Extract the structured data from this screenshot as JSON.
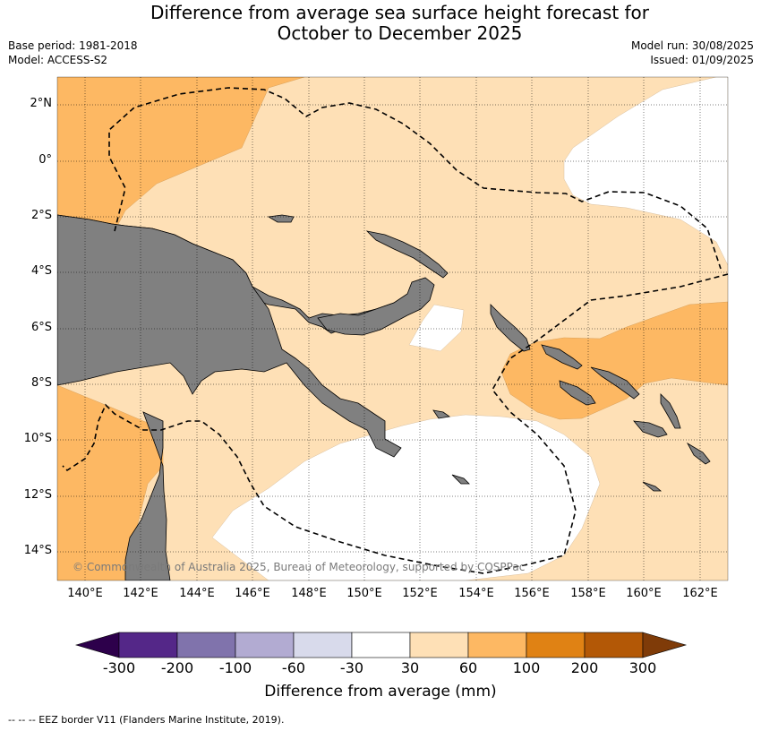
{
  "title_line1": "Difference from average sea surface height forecast for",
  "title_line2": "October to December 2025",
  "meta": {
    "base_period": "Base period: 1981-2018",
    "model": "Model: ACCESS-S2",
    "model_run": "Model run: 30/08/2025",
    "issued": "Issued: 01/09/2025"
  },
  "map": {
    "lon_ticks": [
      "140°E",
      "142°E",
      "144°E",
      "146°E",
      "148°E",
      "150°E",
      "152°E",
      "154°E",
      "156°E",
      "158°E",
      "160°E",
      "162°E"
    ],
    "lat_ticks": [
      "2°N",
      "0°",
      "2°S",
      "4°S",
      "6°S",
      "8°S",
      "10°S",
      "12°S",
      "14°S"
    ],
    "grid": true,
    "land_color": "#808080",
    "copyright": "© Commonwealth of Australia 2025, Bureau of Meteorology, supported by COSPPac"
  },
  "colorbar": {
    "ticks": [
      "-300",
      "-200",
      "-100",
      "-60",
      "-30",
      "30",
      "60",
      "100",
      "200",
      "300"
    ],
    "colors": [
      "#2d004b",
      "#542788",
      "#8073ac",
      "#b2abd2",
      "#d8daeb",
      "#ffffff",
      "#fee0b6",
      "#fdb863",
      "#e08214",
      "#b35806",
      "#7f3b08"
    ],
    "label": "Difference from average (mm)"
  },
  "footer": "--  --  -- EEZ border V11 (Flanders Marine Institute, 2019)."
}
